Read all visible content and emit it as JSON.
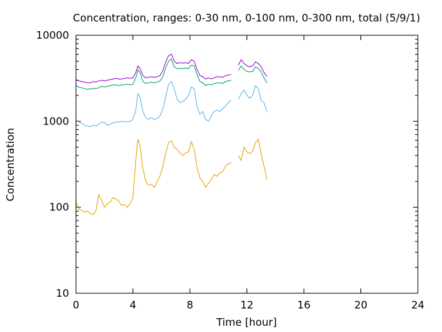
{
  "chart_data": {
    "type": "line",
    "title": "Concentration, ranges: 0-30 nm, 0-100 nm, 0-300 nm, total (5/9/1)",
    "xlabel": "Time [hour]",
    "ylabel": "Concentration",
    "xlim": [
      0,
      24
    ],
    "ylim": [
      10,
      10000
    ],
    "yscale": "log",
    "grid": false,
    "legend": "none",
    "xticks": [
      "0",
      "4",
      "8",
      "12",
      "16",
      "20",
      "24"
    ],
    "yticks": [
      "10",
      "100",
      "1000",
      "10000"
    ],
    "series": [
      {
        "color": "#e69f00",
        "x": [
          0,
          0.2,
          0.4,
          0.6,
          0.8,
          1.0,
          1.2,
          1.4,
          1.6,
          1.8,
          2.0,
          2.2,
          2.4,
          2.6,
          2.8,
          3.0,
          3.2,
          3.4,
          3.6,
          3.8,
          4.0,
          4.2,
          4.35,
          4.5,
          4.7,
          4.9,
          5.1,
          5.3,
          5.5,
          5.7,
          5.9,
          6.1,
          6.3,
          6.5,
          6.7,
          6.9,
          7.1,
          7.3,
          7.5,
          7.7,
          7.9,
          8.1,
          8.3,
          8.5,
          8.7,
          8.9,
          9.1,
          9.3,
          9.5,
          9.7,
          9.9,
          10.1,
          10.3,
          10.5,
          10.7,
          10.9,
          11.4,
          11.6,
          11.8,
          12.0,
          12.2,
          12.4,
          12.6,
          12.8,
          13.0,
          13.2,
          13.4
        ],
        "y": [
          115,
          95,
          92,
          88,
          90,
          85,
          82,
          92,
          140,
          120,
          100,
          110,
          115,
          130,
          125,
          118,
          105,
          108,
          100,
          110,
          130,
          350,
          620,
          520,
          280,
          200,
          180,
          185,
          170,
          200,
          230,
          300,
          420,
          570,
          590,
          500,
          470,
          430,
          400,
          430,
          440,
          580,
          470,
          290,
          220,
          200,
          170,
          190,
          210,
          240,
          230,
          250,
          260,
          300,
          320,
          330,
          400,
          350,
          500,
          440,
          420,
          450,
          560,
          620,
          420,
          300,
          210
        ]
      },
      {
        "color": "#56b4e9",
        "x": [
          0,
          0.2,
          0.4,
          0.6,
          0.8,
          1.0,
          1.2,
          1.4,
          1.6,
          1.8,
          2.0,
          2.2,
          2.4,
          2.6,
          2.8,
          3.0,
          3.2,
          3.4,
          3.6,
          3.8,
          4.0,
          4.2,
          4.35,
          4.5,
          4.7,
          4.9,
          5.1,
          5.3,
          5.5,
          5.7,
          5.9,
          6.1,
          6.3,
          6.5,
          6.7,
          6.9,
          7.1,
          7.3,
          7.5,
          7.7,
          7.9,
          8.1,
          8.3,
          8.5,
          8.7,
          8.9,
          9.1,
          9.3,
          9.5,
          9.7,
          9.9,
          10.1,
          10.3,
          10.5,
          10.7,
          10.9,
          11.4,
          11.6,
          11.8,
          12.0,
          12.2,
          12.4,
          12.6,
          12.8,
          13.0,
          13.2,
          13.4
        ],
        "y": [
          1050,
          980,
          950,
          900,
          880,
          870,
          900,
          880,
          920,
          980,
          970,
          900,
          920,
          960,
          980,
          980,
          1000,
          980,
          990,
          1000,
          1050,
          1350,
          2100,
          1900,
          1300,
          1100,
          1050,
          1100,
          1050,
          1080,
          1150,
          1400,
          1900,
          2700,
          2900,
          2400,
          1800,
          1650,
          1700,
          1800,
          2000,
          2500,
          2400,
          1500,
          1200,
          1300,
          1050,
          1000,
          1150,
          1300,
          1350,
          1300,
          1400,
          1500,
          1650,
          1750,
          1800,
          2100,
          2300,
          2000,
          1850,
          2000,
          2600,
          2400,
          1750,
          1650,
          1300
        ]
      },
      {
        "color": "#009e73",
        "x": [
          0,
          0.2,
          0.4,
          0.6,
          0.8,
          1.0,
          1.2,
          1.4,
          1.6,
          1.8,
          2.0,
          2.2,
          2.4,
          2.6,
          2.8,
          3.0,
          3.2,
          3.4,
          3.6,
          3.8,
          4.0,
          4.2,
          4.35,
          4.5,
          4.7,
          4.9,
          5.1,
          5.3,
          5.5,
          5.7,
          5.9,
          6.1,
          6.3,
          6.5,
          6.7,
          6.9,
          7.1,
          7.3,
          7.5,
          7.7,
          7.9,
          8.1,
          8.3,
          8.5,
          8.7,
          8.9,
          9.1,
          9.3,
          9.5,
          9.7,
          9.9,
          10.1,
          10.3,
          10.5,
          10.7,
          10.9,
          11.4,
          11.6,
          11.8,
          12.0,
          12.2,
          12.4,
          12.6,
          12.8,
          13.0,
          13.2,
          13.4
        ],
        "y": [
          2600,
          2500,
          2450,
          2400,
          2350,
          2380,
          2400,
          2400,
          2450,
          2550,
          2500,
          2550,
          2600,
          2650,
          2650,
          2600,
          2650,
          2650,
          2700,
          2650,
          2700,
          3200,
          3950,
          3700,
          2900,
          2750,
          2800,
          2850,
          2800,
          2850,
          2950,
          3300,
          4200,
          5000,
          5300,
          4300,
          4100,
          4100,
          4100,
          4150,
          4100,
          4500,
          4400,
          3500,
          2900,
          2800,
          2600,
          2700,
          2650,
          2750,
          2800,
          2800,
          2750,
          2900,
          2950,
          3000,
          3900,
          4400,
          4000,
          3800,
          3750,
          3800,
          4300,
          4100,
          3750,
          3200,
          2800
        ]
      },
      {
        "color": "#9400d3",
        "x": [
          0,
          0.2,
          0.4,
          0.6,
          0.8,
          1.0,
          1.2,
          1.4,
          1.6,
          1.8,
          2.0,
          2.2,
          2.4,
          2.6,
          2.8,
          3.0,
          3.2,
          3.4,
          3.6,
          3.8,
          4.0,
          4.2,
          4.35,
          4.5,
          4.7,
          4.9,
          5.1,
          5.3,
          5.5,
          5.7,
          5.9,
          6.1,
          6.3,
          6.5,
          6.7,
          6.9,
          7.1,
          7.3,
          7.5,
          7.7,
          7.9,
          8.1,
          8.3,
          8.5,
          8.7,
          8.9,
          9.1,
          9.3,
          9.5,
          9.7,
          9.9,
          10.1,
          10.3,
          10.5,
          10.7,
          10.9,
          11.4,
          11.6,
          11.8,
          12.0,
          12.2,
          12.4,
          12.6,
          12.8,
          13.0,
          13.2,
          13.4
        ],
        "y": [
          3000,
          2950,
          2900,
          2850,
          2800,
          2800,
          2900,
          2850,
          2950,
          3000,
          2950,
          3000,
          3050,
          3100,
          3150,
          3100,
          3100,
          3150,
          3200,
          3150,
          3200,
          3700,
          4400,
          4100,
          3400,
          3200,
          3250,
          3300,
          3250,
          3300,
          3400,
          3900,
          4900,
          5800,
          6000,
          5000,
          4700,
          4800,
          4750,
          4800,
          4700,
          5200,
          5000,
          4000,
          3400,
          3300,
          3100,
          3200,
          3100,
          3200,
          3300,
          3300,
          3250,
          3400,
          3450,
          3500,
          4500,
          5200,
          4700,
          4400,
          4300,
          4400,
          4900,
          4700,
          4300,
          3700,
          3300
        ]
      }
    ]
  }
}
